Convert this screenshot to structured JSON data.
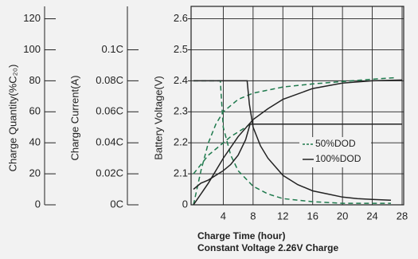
{
  "chart_data": {
    "type": "line",
    "xlabel": "Charge Time (hour)",
    "subtitle": "Constant Voltage 2.26V Charge",
    "xlim": [
      0,
      28
    ],
    "xticks": [
      0,
      4,
      8,
      12,
      16,
      20,
      24,
      28
    ],
    "grid": true,
    "quantity_axis": {
      "title": "Charge Quantity(%C₂₀)",
      "ylim": [
        0,
        128
      ],
      "yticks": [
        0,
        20,
        40,
        60,
        80,
        100,
        120
      ]
    },
    "current_axis": {
      "title": "Charge Current(A)",
      "ylim": [
        0,
        0.128
      ],
      "yticks": [
        {
          "value": 0,
          "label": "0C"
        },
        {
          "value": 0.02,
          "label": "0.02C"
        },
        {
          "value": 0.04,
          "label": "0.04C"
        },
        {
          "value": 0.06,
          "label": "0.06C"
        },
        {
          "value": 0.08,
          "label": "0.08C"
        },
        {
          "value": 0.1,
          "label": "0.1C"
        }
      ]
    },
    "voltage_axis": {
      "title": "Battery Voltage(V)",
      "ylim": [
        2.0,
        2.64
      ],
      "yticks": [
        2.1,
        2.2,
        2.3,
        2.4,
        2.5,
        2.6
      ]
    },
    "groups": [
      {
        "name": "50%DOD",
        "color": "#1f7a4d",
        "dashed": true,
        "quantity": {
          "x": [
            0,
            1,
            2,
            3,
            4,
            6,
            8,
            12,
            16,
            20,
            24,
            27
          ],
          "values": [
            0,
            22,
            40,
            52,
            60,
            68,
            72,
            76,
            78,
            79.5,
            81,
            82
          ]
        },
        "current": {
          "x": [
            0,
            3.6,
            4,
            5,
            6,
            8,
            10,
            12,
            16,
            20,
            26.5
          ],
          "values": [
            0.08,
            0.08,
            0.05,
            0.032,
            0.022,
            0.012,
            0.007,
            0.004,
            0.002,
            0.001,
            0.001
          ]
        },
        "voltage": {
          "x": [
            0,
            1,
            2,
            3,
            4,
            5,
            6,
            7,
            7.6,
            28
          ],
          "values": [
            2.1,
            2.13,
            2.16,
            2.18,
            2.2,
            2.22,
            2.235,
            2.25,
            2.26,
            2.26
          ]
        }
      },
      {
        "name": "100%DOD",
        "color": "#222222",
        "dashed": false,
        "quantity": {
          "x": [
            0,
            2,
            4,
            6,
            8,
            10,
            12,
            16,
            20,
            24,
            28
          ],
          "values": [
            0,
            14,
            30,
            44,
            55,
            62,
            68,
            75,
            78.5,
            80,
            80.5
          ]
        },
        "current": {
          "x": [
            0,
            7.2,
            7.5,
            8,
            9,
            10,
            12,
            14,
            16,
            18,
            20,
            22,
            24,
            26.5
          ],
          "values": [
            0.08,
            0.08,
            0.065,
            0.05,
            0.038,
            0.03,
            0.019,
            0.013,
            0.009,
            0.007,
            0.005,
            0.004,
            0.0035,
            0.003
          ]
        },
        "voltage": {
          "x": [
            0,
            1,
            2,
            3,
            4,
            5,
            6,
            7,
            7.6,
            28
          ],
          "values": [
            2.05,
            2.07,
            2.08,
            2.095,
            2.11,
            2.13,
            2.16,
            2.21,
            2.26,
            2.26
          ]
        }
      }
    ]
  }
}
